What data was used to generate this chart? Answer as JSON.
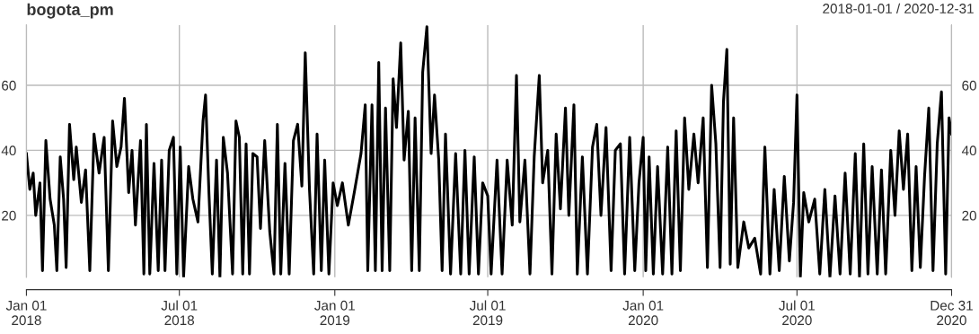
{
  "chart_data": {
    "type": "line",
    "title": "bogota_pm",
    "subtitle": "2018-01-01 / 2020-12-31",
    "x": [
      "2018-01-01",
      "2018-01-05",
      "2018-01-09",
      "2018-01-12",
      "2018-01-17",
      "2018-01-20",
      "2018-01-24",
      "2018-01-29",
      "2018-02-03",
      "2018-02-06",
      "2018-02-10",
      "2018-02-14",
      "2018-02-17",
      "2018-02-21",
      "2018-02-26",
      "2018-03-01",
      "2018-03-07",
      "2018-03-12",
      "2018-03-17",
      "2018-03-22",
      "2018-03-28",
      "2018-04-03",
      "2018-04-08",
      "2018-04-13",
      "2018-04-18",
      "2018-04-23",
      "2018-04-27",
      "2018-05-02",
      "2018-05-06",
      "2018-05-10",
      "2018-05-16",
      "2018-05-20",
      "2018-05-23",
      "2018-05-27",
      "2018-06-01",
      "2018-06-06",
      "2018-06-10",
      "2018-06-14",
      "2018-06-19",
      "2018-06-24",
      "2018-06-28",
      "2018-07-02",
      "2018-07-06",
      "2018-07-12",
      "2018-07-17",
      "2018-07-23",
      "2018-07-29",
      "2018-08-01",
      "2018-08-05",
      "2018-08-09",
      "2018-08-14",
      "2018-08-18",
      "2018-08-22",
      "2018-08-27",
      "2018-09-02",
      "2018-09-06",
      "2018-09-10",
      "2018-09-14",
      "2018-09-18",
      "2018-09-22",
      "2018-09-26",
      "2018-10-01",
      "2018-10-05",
      "2018-10-10",
      "2018-10-16",
      "2018-10-21",
      "2018-10-25",
      "2018-10-29",
      "2018-11-03",
      "2018-11-08",
      "2018-11-13",
      "2018-11-18",
      "2018-11-23",
      "2018-11-27",
      "2018-12-02",
      "2018-12-07",
      "2018-12-11",
      "2018-12-16",
      "2018-12-20",
      "2018-12-25",
      "2018-12-30",
      "2019-01-04",
      "2019-01-10",
      "2019-01-17",
      "2019-01-24",
      "2019-02-01",
      "2019-02-06",
      "2019-02-09",
      "2019-02-14",
      "2019-02-18",
      "2019-02-22",
      "2019-02-26",
      "2019-03-02",
      "2019-03-07",
      "2019-03-11",
      "2019-03-15",
      "2019-03-20",
      "2019-03-24",
      "2019-03-29",
      "2019-04-02",
      "2019-04-06",
      "2019-04-11",
      "2019-04-15",
      "2019-04-20",
      "2019-04-25",
      "2019-04-29",
      "2019-05-04",
      "2019-05-08",
      "2019-05-12",
      "2019-05-18",
      "2019-05-24",
      "2019-05-30",
      "2019-06-04",
      "2019-06-09",
      "2019-06-15",
      "2019-06-20",
      "2019-06-25",
      "2019-07-01",
      "2019-07-05",
      "2019-07-12",
      "2019-07-18",
      "2019-07-24",
      "2019-07-30",
      "2019-08-04",
      "2019-08-08",
      "2019-08-14",
      "2019-08-20",
      "2019-08-25",
      "2019-08-31",
      "2019-09-04",
      "2019-09-10",
      "2019-09-15",
      "2019-09-20",
      "2019-09-25",
      "2019-10-01",
      "2019-10-05",
      "2019-10-11",
      "2019-10-15",
      "2019-10-21",
      "2019-10-27",
      "2019-11-02",
      "2019-11-07",
      "2019-11-12",
      "2019-11-18",
      "2019-11-24",
      "2019-11-29",
      "2019-12-05",
      "2019-12-10",
      "2019-12-16",
      "2019-12-22",
      "2019-12-27",
      "2020-01-01",
      "2020-01-04",
      "2020-01-08",
      "2020-01-13",
      "2020-01-18",
      "2020-01-24",
      "2020-01-30",
      "2020-02-04",
      "2020-02-09",
      "2020-02-14",
      "2020-02-19",
      "2020-02-24",
      "2020-03-01",
      "2020-03-06",
      "2020-03-12",
      "2020-03-17",
      "2020-03-22",
      "2020-03-27",
      "2020-04-01",
      "2020-04-05",
      "2020-04-09",
      "2020-04-13",
      "2020-04-17",
      "2020-04-22",
      "2020-04-29",
      "2020-05-05",
      "2020-05-12",
      "2020-05-19",
      "2020-05-24",
      "2020-05-30",
      "2020-06-04",
      "2020-06-10",
      "2020-06-16",
      "2020-06-22",
      "2020-06-27",
      "2020-07-01",
      "2020-07-05",
      "2020-07-09",
      "2020-07-15",
      "2020-07-22",
      "2020-07-28",
      "2020-08-03",
      "2020-08-09",
      "2020-08-15",
      "2020-08-21",
      "2020-08-27",
      "2020-09-02",
      "2020-09-08",
      "2020-09-13",
      "2020-09-18",
      "2020-09-23",
      "2020-09-28",
      "2020-10-04",
      "2020-10-09",
      "2020-10-14",
      "2020-10-20",
      "2020-10-25",
      "2020-10-30",
      "2020-11-04",
      "2020-11-09",
      "2020-11-14",
      "2020-11-19",
      "2020-11-24",
      "2020-11-29",
      "2020-12-04",
      "2020-12-09",
      "2020-12-14",
      "2020-12-19",
      "2020-12-24",
      "2020-12-28",
      "2020-12-31"
    ],
    "series": [
      {
        "color": "#000000",
        "values": [
          39,
          28,
          33,
          20,
          30,
          3,
          43,
          25,
          17,
          3,
          38,
          25,
          4,
          48,
          31,
          41,
          24,
          34,
          3,
          45,
          33,
          44,
          3,
          49,
          35,
          41,
          56,
          27,
          40,
          17,
          43,
          2,
          48,
          2,
          36,
          3,
          37,
          3,
          40,
          44,
          2,
          41,
          1,
          35,
          25,
          18,
          49,
          57,
          27,
          2,
          37,
          1,
          44,
          33,
          2,
          49,
          44,
          2,
          42,
          2,
          39,
          38,
          16,
          43,
          15,
          2,
          48,
          2,
          36,
          2,
          43,
          48,
          29,
          70,
          28,
          2,
          45,
          3,
          37,
          2,
          30,
          23,
          30,
          17,
          27,
          39,
          54,
          3,
          54,
          3,
          67,
          3,
          53,
          3,
          62,
          47,
          73,
          37,
          52,
          3,
          50,
          3,
          64,
          78,
          39,
          57,
          37,
          3,
          45,
          2,
          39,
          2,
          40,
          2,
          38,
          2,
          30,
          26,
          2,
          37,
          2,
          37,
          17,
          63,
          18,
          37,
          2,
          38,
          63,
          30,
          40,
          2,
          45,
          22,
          53,
          20,
          54,
          2,
          38,
          2,
          41,
          48,
          20,
          47,
          3,
          40,
          42,
          2,
          44,
          3,
          30,
          44,
          3,
          38,
          2,
          35,
          2,
          41,
          2,
          46,
          3,
          50,
          28,
          45,
          30,
          50,
          4,
          60,
          42,
          4,
          55,
          71,
          5,
          50,
          4,
          18,
          10,
          13,
          2,
          41,
          2,
          28,
          3,
          32,
          6,
          24,
          57,
          1,
          27,
          18,
          25,
          2,
          28,
          1,
          26,
          2,
          33,
          2,
          39,
          1,
          42,
          2,
          35,
          2,
          34,
          2,
          40,
          20,
          46,
          28,
          45,
          3,
          35,
          4,
          32,
          53,
          3,
          42,
          58,
          2,
          50,
          45
        ]
      }
    ],
    "xlim": [
      "2018-01-01",
      "2020-12-31"
    ],
    "xticks": [
      {
        "value": "2018-01-01",
        "label": "Jan 01\n2018"
      },
      {
        "value": "2018-07-01",
        "label": "Jul 01\n2018"
      },
      {
        "value": "2019-01-01",
        "label": "Jan 01\n2019"
      },
      {
        "value": "2019-07-01",
        "label": "Jul 01\n2019"
      },
      {
        "value": "2020-01-01",
        "label": "Jan 01\n2020"
      },
      {
        "value": "2020-07-01",
        "label": "Jul 01\n2020"
      },
      {
        "value": "2020-12-31",
        "label": "Dec 31\n2020"
      }
    ],
    "ylim": [
      1,
      78.5
    ],
    "yticks": [
      20,
      40,
      60
    ],
    "y2lim": [
      1,
      78.5
    ],
    "y2ticks": [
      20,
      40,
      60
    ],
    "grid": true,
    "line_style": "solid"
  }
}
